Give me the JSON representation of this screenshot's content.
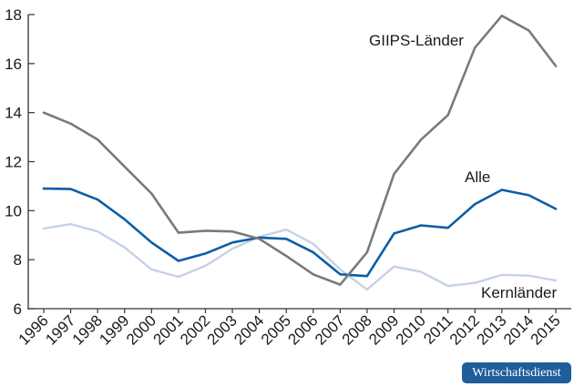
{
  "chart_data": {
    "type": "line",
    "x": [
      "1996",
      "1997",
      "1998",
      "1999",
      "2000",
      "2001",
      "2002",
      "2003",
      "2004",
      "2005",
      "2006",
      "2007",
      "2008",
      "2009",
      "2010",
      "2011",
      "2012",
      "2013",
      "2014",
      "2015"
    ],
    "ylim": [
      6,
      18
    ],
    "yticks": [
      6,
      8,
      10,
      12,
      14,
      16,
      18
    ],
    "grid": false,
    "series": [
      {
        "name": "GIIPS-Länder",
        "color": "#7a7a7a",
        "values": [
          14.0,
          13.55,
          12.9,
          11.8,
          10.7,
          9.1,
          9.18,
          9.15,
          8.85,
          8.15,
          7.4,
          6.98,
          8.3,
          11.5,
          12.9,
          13.9,
          16.65,
          17.95,
          17.35,
          15.9
        ]
      },
      {
        "name": "Alle",
        "color": "#0b5ea6",
        "values": [
          10.9,
          10.88,
          10.45,
          9.65,
          8.7,
          7.95,
          8.25,
          8.7,
          8.9,
          8.85,
          8.3,
          7.4,
          7.33,
          9.07,
          9.4,
          9.3,
          10.27,
          10.85,
          10.63,
          10.07
        ]
      },
      {
        "name": "Kernländer",
        "color": "#c5d1e6",
        "values": [
          9.27,
          9.45,
          9.15,
          8.5,
          7.6,
          7.3,
          7.75,
          8.45,
          8.93,
          9.23,
          8.65,
          7.6,
          6.78,
          7.72,
          7.5,
          6.93,
          7.05,
          7.38,
          7.35,
          7.15
        ]
      }
    ]
  },
  "brand": {
    "label": "Wirtschaftsdienst"
  }
}
